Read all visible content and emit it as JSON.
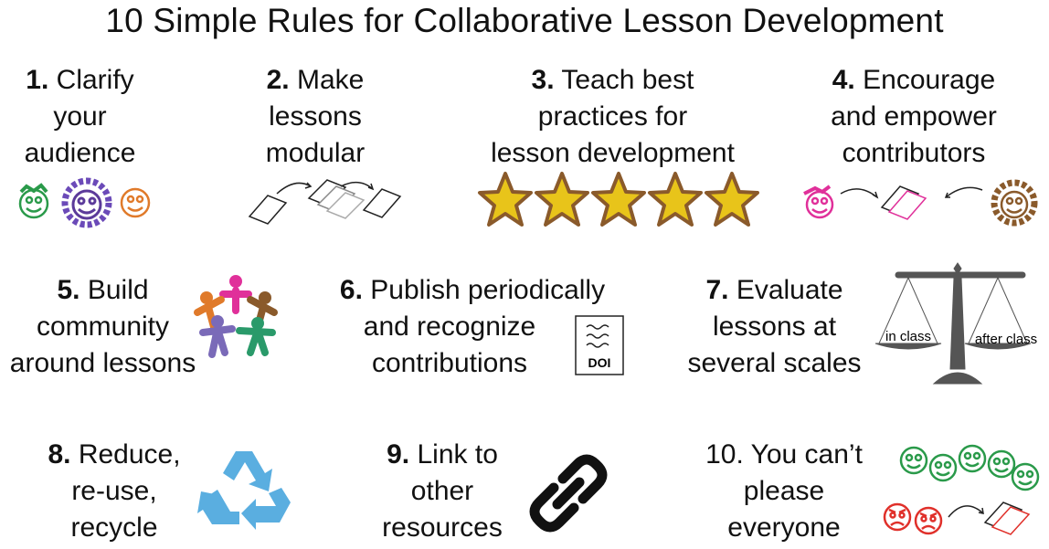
{
  "title": "10 Simple Rules for Collaborative Lesson Development",
  "rules": [
    {
      "num": "1.",
      "lines": [
        "Clarify",
        "your",
        "audience"
      ]
    },
    {
      "num": "2.",
      "lines": [
        "Make",
        "lessons",
        "modular"
      ]
    },
    {
      "num": "3.",
      "lines": [
        "Teach best",
        "practices for",
        "lesson development"
      ]
    },
    {
      "num": "4.",
      "lines": [
        "Encourage",
        "and empower",
        "contributors"
      ]
    },
    {
      "num": "5.",
      "lines": [
        "Build",
        "community",
        "around lessons"
      ]
    },
    {
      "num": "6.",
      "lines": [
        "Publish periodically",
        "and recognize",
        "contributions"
      ]
    },
    {
      "num": "7.",
      "lines": [
        "Evaluate",
        "lessons at",
        "several scales"
      ]
    },
    {
      "num": "8.",
      "lines": [
        "Reduce,",
        "re-use,",
        "recycle"
      ]
    },
    {
      "num": "9.",
      "lines": [
        "Link to",
        "other",
        "resources"
      ]
    },
    {
      "num": "10.",
      "lines": [
        "You can’t",
        "please",
        "everyone"
      ]
    }
  ],
  "scale": {
    "left_label": "in class",
    "right_label": "after class"
  },
  "doi": {
    "label": "DOI"
  },
  "icons": {
    "rule1": "smiley-faces-icon",
    "rule2": "modular-documents-icon",
    "rule3": "five-stars-icon",
    "rule4": "contributors-document-icon",
    "rule5": "community-people-circle-icon",
    "rule6": "doi-document-icon",
    "rule7": "balance-scale-icon",
    "rule8": "recycle-icon",
    "rule9": "chain-link-icon",
    "rule10": "happy-and-angry-faces-icon"
  },
  "colors": {
    "star_fill": "#e8c41a",
    "star_edge": "#8a5a2b",
    "face_green": "#2a9a4a",
    "face_purple": "#5b3a9a",
    "face_orange": "#e07a2a",
    "face_pink": "#e0309a",
    "face_brown": "#8a5a2b",
    "face_red": "#e0302a",
    "recycle_blue": "#5aaee0",
    "scale_gray": "#555555"
  }
}
